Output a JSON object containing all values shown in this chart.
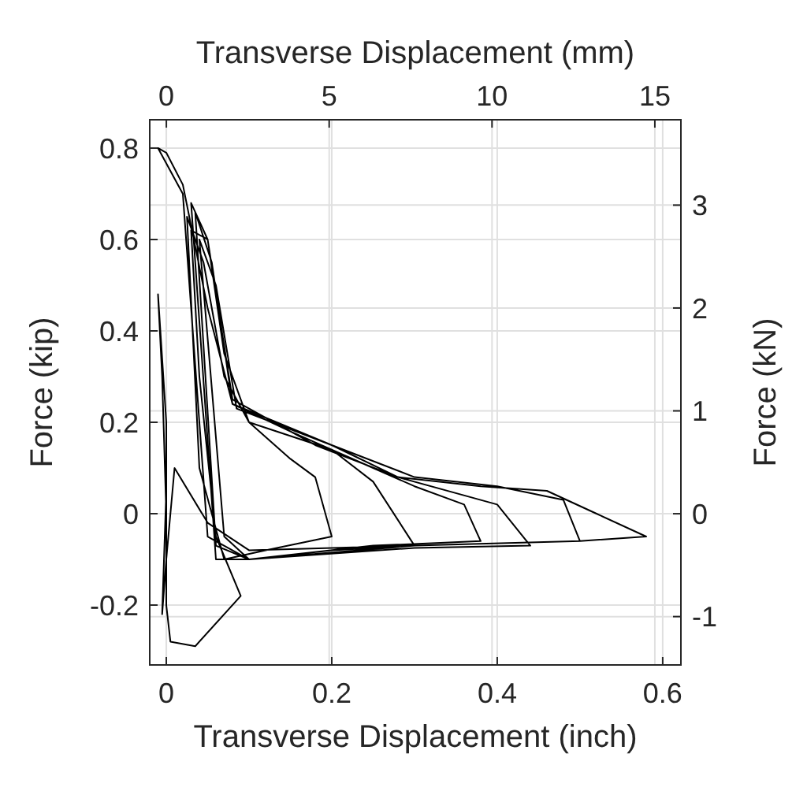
{
  "chart_data": {
    "type": "line",
    "xlabel": "Transverse Displacement (inch)",
    "x2label": "Transverse Displacement (mm)",
    "ylabel": "Force (kip)",
    "y2label": "Force (kN)",
    "xlim": [
      -0.02,
      0.622
    ],
    "xticks": [
      0,
      0.2,
      0.4,
      0.6
    ],
    "x2lim": [
      -0.51,
      15.8
    ],
    "x2ticks": [
      0,
      5,
      10,
      15
    ],
    "ylim": [
      -0.331,
      0.862
    ],
    "yticks": [
      -0.2,
      0,
      0.2,
      0.4,
      0.6,
      0.8
    ],
    "y2lim": [
      -1.47,
      3.83
    ],
    "y2ticks": [
      -1,
      0,
      1,
      2,
      3
    ],
    "grid": true,
    "series": [
      {
        "color": "#000000",
        "x": [
          0,
          -0.005,
          -0.01,
          0,
          0,
          0.005,
          0.035,
          0.09,
          0.06,
          0.04,
          0.03,
          0.05,
          0.07,
          0.1,
          0.15,
          0.18,
          0.2,
          0.12,
          0.07,
          0.04,
          0.025,
          0.045,
          0.07,
          0.1,
          0.2,
          0.25,
          0.3,
          0.2,
          0.1,
          0.05,
          0.02,
          -0.01,
          0,
          0.02,
          0.05,
          0.08,
          0.15,
          0.25,
          0.3,
          0.36,
          0.38,
          0.25,
          0.1,
          0.06,
          0.03,
          0.05,
          0.08,
          0.18,
          0.28,
          0.4,
          0.44,
          0.3,
          0.1,
          0.06,
          0.035,
          0.055,
          0.08,
          0.2,
          0.3,
          0.4,
          0.48,
          0.5,
          0.3,
          0.1,
          0.07,
          0.04,
          0.06,
          0.085,
          0.2,
          0.28,
          0.38,
          0.46,
          0.52,
          0.58,
          0.5,
          0.3,
          0.1,
          0.05,
          0.01,
          0,
          -0.005,
          0
        ],
        "values": [
          0,
          0.3,
          0.48,
          0.2,
          -0.2,
          -0.28,
          -0.29,
          -0.18,
          -0.05,
          0.3,
          0.62,
          0.6,
          0.35,
          0.2,
          0.12,
          0.08,
          -0.05,
          -0.08,
          -0.1,
          0.1,
          0.65,
          0.55,
          0.3,
          0.2,
          0.14,
          0.07,
          -0.07,
          -0.08,
          -0.1,
          -0.05,
          0.7,
          0.8,
          0.79,
          0.72,
          0.45,
          0.24,
          0.18,
          0.1,
          0.06,
          0.02,
          -0.06,
          -0.07,
          -0.1,
          -0.1,
          0.68,
          0.6,
          0.25,
          0.15,
          0.08,
          0.02,
          -0.07,
          -0.075,
          -0.1,
          -0.07,
          0.66,
          0.55,
          0.24,
          0.15,
          0.08,
          0.06,
          0.03,
          -0.06,
          -0.07,
          -0.1,
          -0.05,
          0.6,
          0.5,
          0.23,
          0.15,
          0.08,
          0.06,
          0.05,
          0,
          -0.05,
          -0.06,
          -0.07,
          -0.08,
          -0.02,
          0.1,
          -0.1,
          -0.22,
          0.05
        ]
      }
    ]
  }
}
